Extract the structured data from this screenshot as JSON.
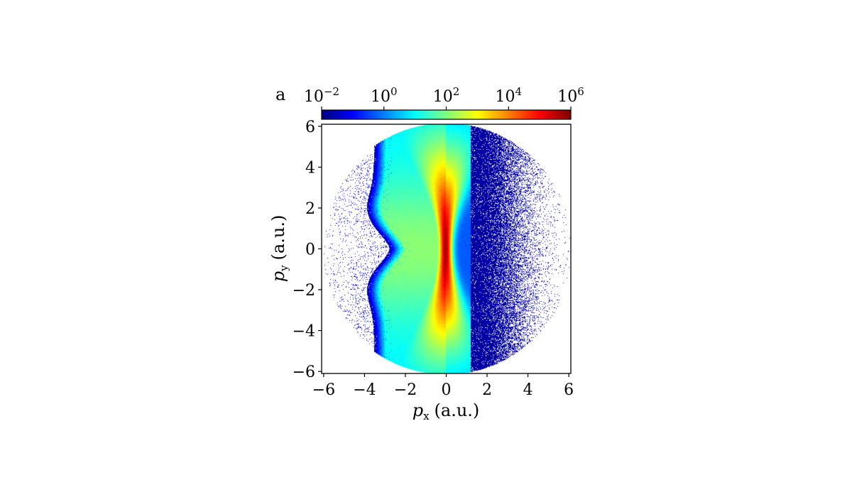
{
  "chart_data": {
    "type": "heatmap",
    "panel_label": "a",
    "title": "",
    "xlabel": {
      "symbol": "p",
      "subscript": "x",
      "unit": "(a.u.)"
    },
    "ylabel": {
      "symbol": "p",
      "subscript": "y",
      "unit": "(a.u.)"
    },
    "xlim": [
      -6.1,
      6.1
    ],
    "ylim": [
      -6.1,
      6.1
    ],
    "x_ticks": [
      -6,
      -4,
      -2,
      0,
      2,
      4,
      6
    ],
    "y_ticks": [
      -6,
      -4,
      -2,
      0,
      2,
      4,
      6
    ],
    "x_tick_labels": [
      "−6",
      "−4",
      "−2",
      "0",
      "2",
      "4",
      "6"
    ],
    "y_tick_labels": [
      "−6",
      "−4",
      "−2",
      "0",
      "2",
      "4",
      "6"
    ],
    "grid": false,
    "colorbar": {
      "position": "top",
      "scale": "log",
      "range": [
        0.01,
        1000000
      ],
      "ticks": [
        {
          "value": 0.01,
          "base": "10",
          "exp": "−2"
        },
        {
          "value": 1,
          "base": "10",
          "exp": "0"
        },
        {
          "value": 100,
          "base": "10",
          "exp": "2"
        },
        {
          "value": 10000,
          "base": "10",
          "exp": "4"
        },
        {
          "value": 1000000,
          "base": "10",
          "exp": "6"
        }
      ],
      "colormap": "jet",
      "colormap_stops": [
        "#00007f",
        "#0000ff",
        "#007fff",
        "#00ffff",
        "#7fff7f",
        "#ffff00",
        "#ff7f00",
        "#ff0000",
        "#7f0000"
      ]
    },
    "halves": [
      {
        "side": "left",
        "x_range": [
          -6.1,
          0
        ],
        "peak_log10": 5.8,
        "support_radius": 6.1
      },
      {
        "side": "right",
        "x_range": [
          0,
          6.1
        ],
        "peak_log10": 5.8,
        "support_radius": 6.1
      }
    ]
  }
}
